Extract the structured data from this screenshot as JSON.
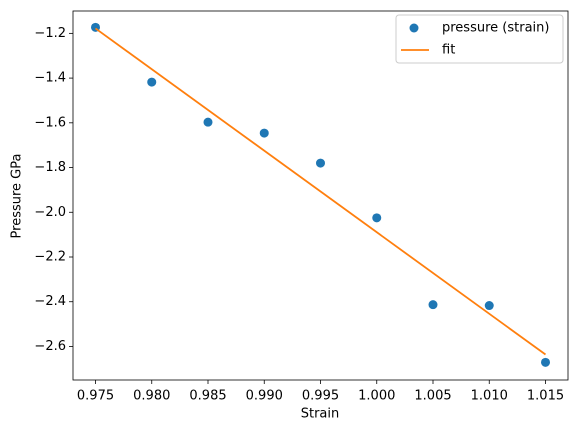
{
  "chart_data": {
    "type": "scatter",
    "xlabel": "Strain",
    "ylabel": "Pressure GPa",
    "xlim": [
      0.973,
      1.017
    ],
    "ylim": [
      -2.75,
      -1.1
    ],
    "xticks": [
      0.975,
      {
        "value": 0.98,
        "label": "0.980"
      },
      0.985,
      {
        "value": 0.99,
        "label": "0.990"
      },
      0.995,
      {
        "value": 1.0,
        "label": "1.000"
      },
      1.005,
      {
        "value": 1.01,
        "label": "1.010"
      },
      1.015
    ],
    "yticks": [
      {
        "value": -1.2,
        "label": "−1.2"
      },
      {
        "value": -1.4,
        "label": "−1.4"
      },
      {
        "value": -1.6,
        "label": "−1.6"
      },
      {
        "value": -1.8,
        "label": "−1.8"
      },
      {
        "value": -2.0,
        "label": "−2.0"
      },
      {
        "value": -2.2,
        "label": "−2.2"
      },
      {
        "value": -2.4,
        "label": "−2.4"
      },
      {
        "value": -2.6,
        "label": "−2.6"
      }
    ],
    "legend": "upper right",
    "series": [
      {
        "name": "pressure (strain)",
        "type": "scatter",
        "color": "#1f77b4",
        "x": [
          0.975,
          0.98,
          0.985,
          0.99,
          0.995,
          1.0,
          1.005,
          1.01,
          1.015
        ],
        "values": [
          -1.173,
          -1.418,
          -1.597,
          -1.646,
          -1.78,
          -2.025,
          -2.413,
          -2.417,
          -2.671
        ]
      },
      {
        "name": "fit",
        "type": "line",
        "color": "#ff7f0e",
        "x": [
          0.975,
          1.015
        ],
        "values": [
          -1.178,
          -2.636
        ]
      }
    ]
  }
}
